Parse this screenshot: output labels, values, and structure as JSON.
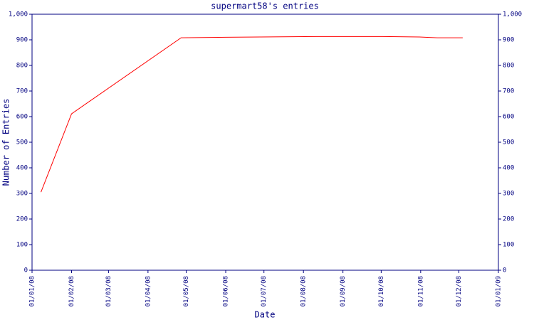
{
  "chart_data": {
    "type": "line",
    "title": "supermart58's entries",
    "xlabel": "Date",
    "ylabel": "Number of Entries",
    "x": [
      "2008-01-08",
      "2008-02-01",
      "2008-04-27",
      "2008-06-01",
      "2008-08-11",
      "2008-10-02",
      "2008-10-31",
      "2008-11-14",
      "2008-12-04"
    ],
    "series": [
      {
        "name": "supermart58",
        "color": "#ff0000",
        "values": [
          305,
          611,
          908,
          910,
          913,
          913,
          911,
          908,
          908
        ]
      }
    ],
    "xlim": [
      "2008-01-01",
      "2009-01-01"
    ],
    "xticks": [
      {
        "value": "2008-01-01",
        "label": "01/01/08"
      },
      {
        "value": "2008-02-01",
        "label": "01/02/08"
      },
      {
        "value": "2008-03-01",
        "label": "01/03/08"
      },
      {
        "value": "2008-04-01",
        "label": "01/04/08"
      },
      {
        "value": "2008-05-01",
        "label": "01/05/08"
      },
      {
        "value": "2008-06-01",
        "label": "01/06/08"
      },
      {
        "value": "2008-07-01",
        "label": "01/07/08"
      },
      {
        "value": "2008-08-01",
        "label": "01/08/08"
      },
      {
        "value": "2008-09-01",
        "label": "01/09/08"
      },
      {
        "value": "2008-10-01",
        "label": "01/10/08"
      },
      {
        "value": "2008-11-01",
        "label": "01/11/08"
      },
      {
        "value": "2008-12-01",
        "label": "01/12/08"
      },
      {
        "value": "2009-01-01",
        "label": "01/01/09"
      }
    ],
    "ylim": [
      0,
      1000
    ],
    "yticks": [
      0,
      100,
      200,
      300,
      400,
      500,
      600,
      700,
      800,
      900,
      {
        "value": 1000,
        "label": "1,000"
      }
    ],
    "y2lim": [
      0,
      1000
    ],
    "y2ticks": [
      0,
      100,
      200,
      300,
      400,
      500,
      600,
      700,
      800,
      900,
      {
        "value": 1000,
        "label": "1,000"
      }
    ],
    "axis_color": "#000080"
  }
}
